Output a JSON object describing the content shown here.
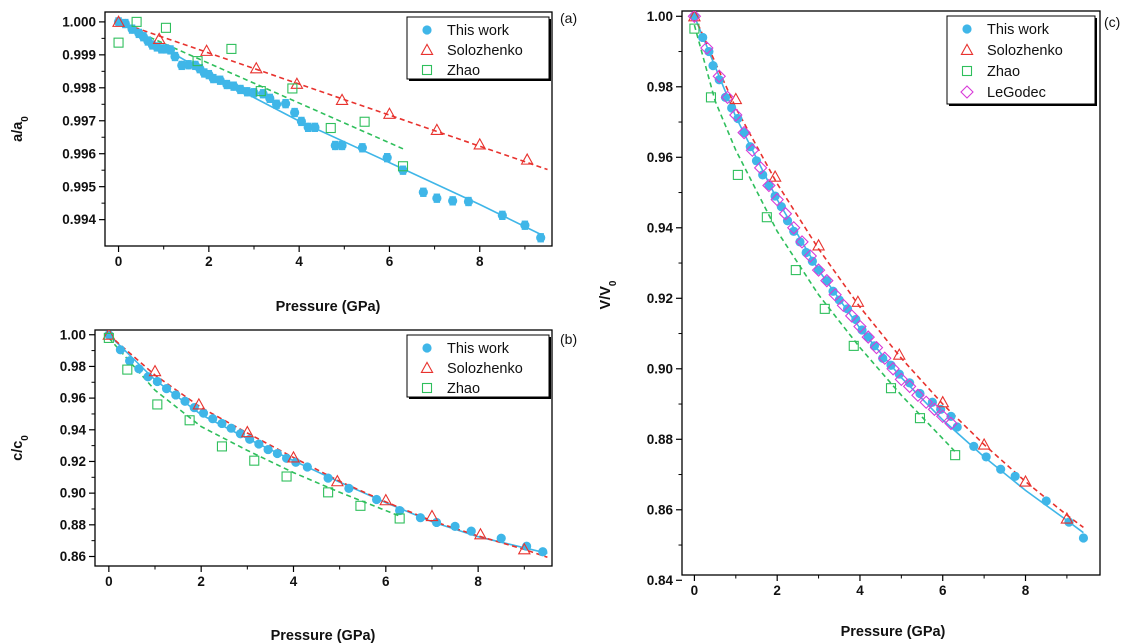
{
  "colors": {
    "this_work": "#3fb6e8",
    "solozhenko": "#e8322e",
    "zhao": "#2fbf5c",
    "legodec": "#d83ad8"
  },
  "legend_markers": {
    "this_work": "filled-circle",
    "solozhenko": "open-triangle",
    "zhao": "open-square",
    "legodec": "open-diamond"
  },
  "chart_data": [
    {
      "panel": "(a)",
      "type": "scatter",
      "xlabel": "Pressure (GPa)",
      "ylabel": "a/a0",
      "xlim": [
        -0.3,
        9.6
      ],
      "ylim": [
        0.9932,
        1.0003
      ],
      "xticks": [
        "0",
        "2",
        "4",
        "6",
        "8"
      ],
      "yticks": [
        "0.994",
        "0.995",
        "0.996",
        "0.997",
        "0.998",
        "0.999",
        "1.000"
      ],
      "legend_position": "top-right",
      "series": [
        {
          "name": "This work",
          "key": "this_work",
          "marker": "filled-circle",
          "error_bars": true,
          "x": [
            0.0,
            0.15,
            0.3,
            0.45,
            0.55,
            0.65,
            0.75,
            0.85,
            0.95,
            1.05,
            1.15,
            1.25,
            1.4,
            1.55,
            1.7,
            1.8,
            1.9,
            2.0,
            2.1,
            2.25,
            2.4,
            2.55,
            2.7,
            2.85,
            3.0,
            3.2,
            3.35,
            3.5,
            3.7,
            3.9,
            4.05,
            4.2,
            4.35,
            4.8,
            4.95,
            5.4,
            5.95,
            6.3,
            6.75,
            7.05,
            7.4,
            7.75,
            8.5,
            9.0,
            9.35
          ],
          "y": [
            1.0,
            0.99995,
            0.99978,
            0.99965,
            0.99955,
            0.99942,
            0.9993,
            0.99924,
            0.99918,
            0.99918,
            0.99915,
            0.99895,
            0.99868,
            0.9987,
            0.99868,
            0.99858,
            0.99845,
            0.9984,
            0.99828,
            0.99823,
            0.9981,
            0.99805,
            0.99795,
            0.99788,
            0.99785,
            0.99782,
            0.99768,
            0.9975,
            0.99752,
            0.99725,
            0.99698,
            0.9968,
            0.9968,
            0.99625,
            0.99625,
            0.99618,
            0.99588,
            0.9955,
            0.99483,
            0.99465,
            0.99457,
            0.99455,
            0.99413,
            0.99383,
            0.99345
          ],
          "err": 0.00012
        },
        {
          "name": "Solozhenko",
          "key": "solozhenko",
          "marker": "open-triangle",
          "x": [
            0.0,
            0.9,
            1.95,
            3.05,
            3.95,
            4.95,
            6.0,
            7.05,
            8.0,
            9.05
          ],
          "y": [
            1.0,
            0.99948,
            0.99912,
            0.99859,
            0.99812,
            0.99763,
            0.99721,
            0.99672,
            0.99628,
            0.99582
          ]
        },
        {
          "name": "Zhao",
          "key": "zhao",
          "marker": "open-square",
          "x": [
            0.0,
            0.4,
            1.05,
            1.75,
            2.5,
            3.15,
            3.85,
            4.7,
            5.45,
            6.3
          ],
          "y": [
            0.99937,
            1.0,
            0.99982,
            0.99881,
            0.99918,
            0.9979,
            0.99798,
            0.99678,
            0.99697,
            0.99562
          ]
        }
      ],
      "fits": [
        {
          "key": "this_work",
          "style": "solid",
          "x": [
            0.0,
            2.0,
            4.0,
            6.0,
            8.0,
            9.4
          ],
          "y": [
            1.0,
            0.99842,
            0.99699,
            0.99573,
            0.99446,
            0.99352
          ]
        },
        {
          "key": "solozhenko",
          "style": "dashed",
          "x": [
            0.0,
            9.5
          ],
          "y": [
            1.0,
            0.99552
          ]
        },
        {
          "key": "zhao",
          "style": "dashed",
          "x": [
            0.0,
            6.3
          ],
          "y": [
            0.99995,
            0.99615
          ]
        }
      ]
    },
    {
      "panel": "(b)",
      "type": "scatter",
      "xlabel": "Pressure (GPa)",
      "ylabel": "c/c0",
      "xlim": [
        -0.3,
        9.6
      ],
      "ylim": [
        0.854,
        1.003
      ],
      "xticks": [
        "0",
        "2",
        "4",
        "6",
        "8"
      ],
      "yticks": [
        "0.86",
        "0.88",
        "0.90",
        "0.92",
        "0.94",
        "0.96",
        "0.98",
        "1.00"
      ],
      "legend_position": "top-right",
      "series": [
        {
          "name": "This work",
          "key": "this_work",
          "marker": "filled-circle",
          "x": [
            0.0,
            0.25,
            0.45,
            0.65,
            0.85,
            1.05,
            1.25,
            1.45,
            1.65,
            1.85,
            2.05,
            2.25,
            2.45,
            2.65,
            2.85,
            3.05,
            3.25,
            3.45,
            3.65,
            3.85,
            4.05,
            4.3,
            4.75,
            5.2,
            5.8,
            6.3,
            6.75,
            7.1,
            7.5,
            7.85,
            8.5,
            9.05,
            9.4
          ],
          "y": [
            1.0,
            0.9905,
            0.9835,
            0.9785,
            0.9735,
            0.9705,
            0.966,
            0.962,
            0.958,
            0.954,
            0.9505,
            0.947,
            0.944,
            0.941,
            0.9375,
            0.934,
            0.931,
            0.9275,
            0.925,
            0.922,
            0.9195,
            0.9165,
            0.9095,
            0.903,
            0.896,
            0.889,
            0.8845,
            0.8815,
            0.879,
            0.876,
            0.8715,
            0.8665,
            0.863
          ]
        },
        {
          "name": "Solozhenko",
          "key": "solozhenko",
          "marker": "open-triangle",
          "x": [
            0.0,
            1.0,
            1.95,
            3.0,
            4.0,
            4.95,
            6.0,
            7.0,
            8.05,
            9.0
          ],
          "y": [
            1.0,
            0.977,
            0.956,
            0.9385,
            0.9225,
            0.9075,
            0.8955,
            0.8855,
            0.874,
            0.8645
          ]
        },
        {
          "name": "Zhao",
          "key": "zhao",
          "marker": "open-square",
          "x": [
            0.0,
            0.4,
            1.05,
            1.75,
            2.45,
            3.15,
            3.85,
            4.75,
            5.45,
            6.3
          ],
          "y": [
            0.998,
            0.978,
            0.956,
            0.946,
            0.9295,
            0.9205,
            0.9105,
            0.9005,
            0.892,
            0.884
          ]
        }
      ],
      "fits": [
        {
          "key": "this_work",
          "style": "solid",
          "x": [
            0.0,
            1.0,
            2.0,
            3.0,
            4.0,
            5.0,
            6.0,
            7.0,
            8.0,
            9.0,
            9.5
          ],
          "y": [
            1.0,
            0.9715,
            0.9495,
            0.9345,
            0.9205,
            0.907,
            0.894,
            0.882,
            0.8725,
            0.8655,
            0.862
          ]
        },
        {
          "key": "solozhenko",
          "style": "dashed",
          "x": [
            0.0,
            1.0,
            2.0,
            3.0,
            4.0,
            5.0,
            6.0,
            7.0,
            8.0,
            9.0,
            9.5
          ],
          "y": [
            1.0,
            0.9745,
            0.954,
            0.938,
            0.9225,
            0.9075,
            0.8945,
            0.8825,
            0.873,
            0.8645,
            0.8595
          ]
        },
        {
          "key": "zhao",
          "style": "dashed",
          "x": [
            0.0,
            1.0,
            2.0,
            3.0,
            4.0,
            5.0,
            6.3
          ],
          "y": [
            0.998,
            0.965,
            0.942,
            0.927,
            0.913,
            0.9005,
            0.8855
          ]
        }
      ]
    },
    {
      "panel": "(c)",
      "type": "scatter",
      "xlabel": "Pressure (GPa)",
      "ylabel": "V/V0",
      "xlim": [
        -0.3,
        9.8
      ],
      "ylim": [
        0.8415,
        1.0015
      ],
      "xticks": [
        "0",
        "2",
        "4",
        "6",
        "8"
      ],
      "yticks": [
        "0.84",
        "0.86",
        "0.88",
        "0.90",
        "0.92",
        "0.94",
        "0.96",
        "0.98",
        "1.00"
      ],
      "legend_position": "top-right",
      "series": [
        {
          "name": "This work",
          "key": "this_work",
          "marker": "filled-circle",
          "x": [
            0.0,
            0.2,
            0.35,
            0.45,
            0.6,
            0.75,
            0.9,
            1.05,
            1.2,
            1.35,
            1.5,
            1.65,
            1.8,
            1.95,
            2.1,
            2.25,
            2.4,
            2.55,
            2.7,
            2.85,
            3.0,
            3.2,
            3.35,
            3.5,
            3.7,
            3.9,
            4.05,
            4.2,
            4.35,
            4.55,
            4.75,
            4.95,
            5.2,
            5.45,
            5.75,
            5.95,
            6.2,
            6.35,
            6.75,
            7.05,
            7.4,
            7.75,
            8.5,
            9.05,
            9.4
          ],
          "y": [
            1.0,
            0.994,
            0.99,
            0.986,
            0.982,
            0.977,
            0.974,
            0.971,
            0.967,
            0.963,
            0.959,
            0.955,
            0.952,
            0.949,
            0.946,
            0.942,
            0.939,
            0.936,
            0.933,
            0.9305,
            0.928,
            0.925,
            0.922,
            0.9195,
            0.917,
            0.914,
            0.911,
            0.909,
            0.9065,
            0.903,
            0.901,
            0.8985,
            0.896,
            0.893,
            0.8905,
            0.8885,
            0.8865,
            0.8835,
            0.878,
            0.875,
            0.8715,
            0.8695,
            0.8625,
            0.8565,
            0.852
          ]
        },
        {
          "name": "Solozhenko",
          "key": "solozhenko",
          "marker": "open-triangle",
          "x": [
            0.0,
            1.0,
            1.95,
            3.0,
            3.95,
            4.95,
            6.0,
            7.0,
            8.0,
            9.0
          ],
          "y": [
            1.0,
            0.9765,
            0.9545,
            0.935,
            0.919,
            0.904,
            0.8905,
            0.8785,
            0.868,
            0.8575
          ]
        },
        {
          "name": "Zhao",
          "key": "zhao",
          "marker": "open-square",
          "x": [
            0.0,
            0.4,
            1.05,
            1.75,
            2.45,
            3.15,
            3.85,
            4.75,
            5.45,
            6.3
          ],
          "y": [
            0.9965,
            0.977,
            0.955,
            0.943,
            0.928,
            0.917,
            0.9065,
            0.8945,
            0.886,
            0.8755
          ]
        },
        {
          "name": "LeGodec",
          "key": "legodec",
          "marker": "open-diamond",
          "x": [
            0.0,
            0.3,
            0.6,
            0.8,
            1.0,
            1.2,
            1.4,
            1.6,
            1.8,
            2.0,
            2.2,
            2.4,
            2.6,
            2.8,
            3.0,
            3.2,
            3.4,
            3.6,
            3.8,
            4.0,
            4.2,
            4.4,
            4.6,
            4.8,
            5.0,
            5.2,
            5.4,
            5.6,
            5.8,
            6.0,
            6.2
          ],
          "y": [
            1.0,
            0.991,
            0.983,
            0.977,
            0.972,
            0.967,
            0.962,
            0.957,
            0.952,
            0.948,
            0.944,
            0.94,
            0.936,
            0.932,
            0.928,
            0.925,
            0.921,
            0.918,
            0.915,
            0.912,
            0.909,
            0.906,
            0.903,
            0.9,
            0.897,
            0.895,
            0.8925,
            0.8905,
            0.8885,
            0.8865,
            0.8845
          ]
        }
      ],
      "fits": [
        {
          "key": "this_work",
          "style": "solid",
          "x": [
            0.0,
            1.0,
            2.0,
            3.0,
            4.0,
            5.0,
            6.0,
            7.0,
            8.0,
            9.0,
            9.4
          ],
          "y": [
            1.0,
            0.9715,
            0.948,
            0.928,
            0.9115,
            0.8975,
            0.8855,
            0.875,
            0.8655,
            0.857,
            0.8535
          ]
        },
        {
          "key": "solozhenko",
          "style": "dashed",
          "x": [
            0.0,
            1.0,
            2.0,
            3.0,
            4.0,
            5.0,
            6.0,
            7.0,
            8.0,
            9.0,
            9.4
          ],
          "y": [
            1.0,
            0.974,
            0.9525,
            0.934,
            0.9175,
            0.903,
            0.89,
            0.8785,
            0.868,
            0.8585,
            0.855
          ]
        },
        {
          "key": "zhao",
          "style": "dashed",
          "x": [
            0.0,
            0.5,
            1.0,
            2.0,
            3.0,
            4.0,
            5.0,
            6.3
          ],
          "y": [
            0.9975,
            0.976,
            0.962,
            0.939,
            0.921,
            0.906,
            0.8925,
            0.8765
          ]
        }
      ]
    }
  ]
}
